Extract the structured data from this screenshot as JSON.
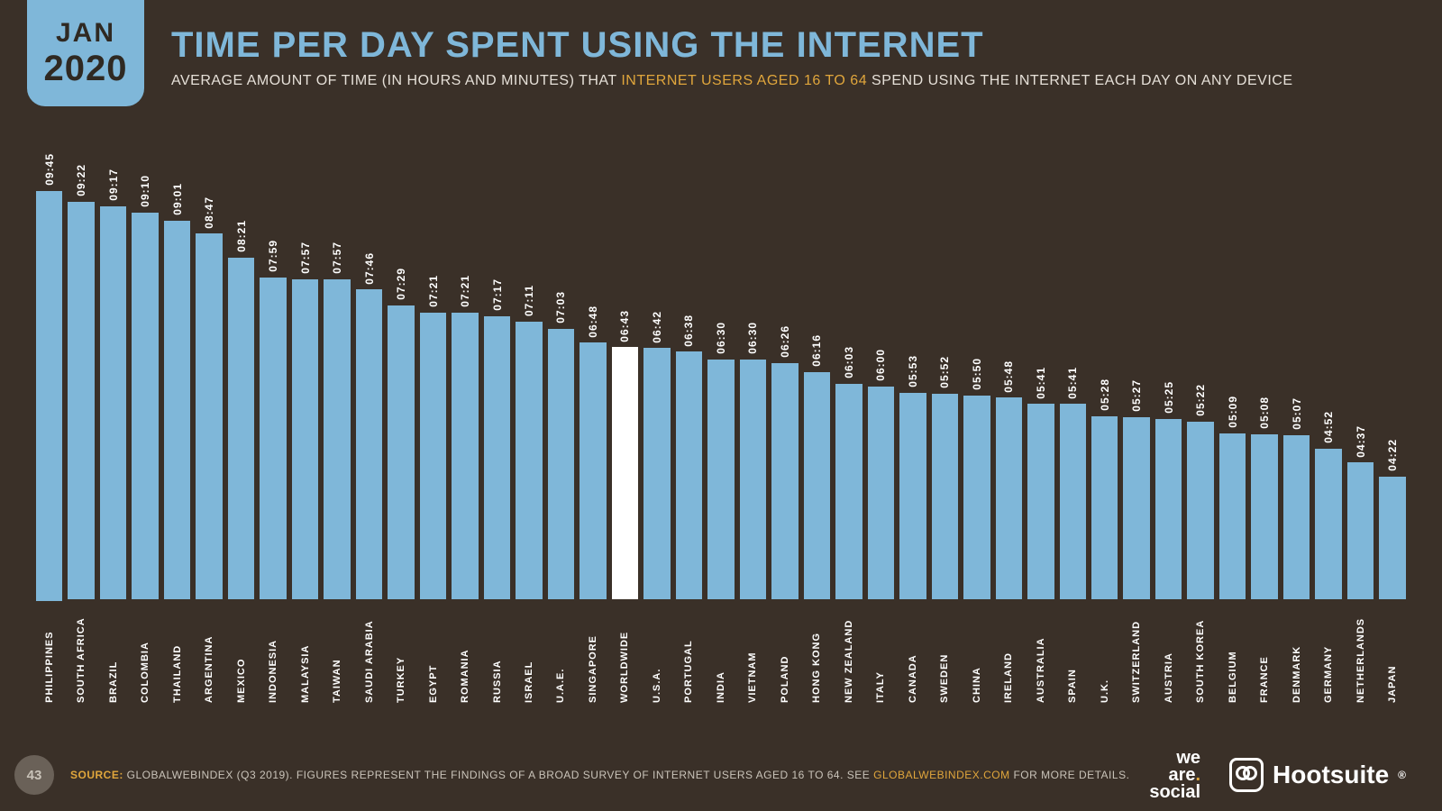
{
  "badge": {
    "month": "JAN",
    "year": "2020"
  },
  "header": {
    "title": "TIME PER DAY SPENT USING THE INTERNET",
    "subtitle_before": "AVERAGE AMOUNT OF TIME (IN HOURS AND MINUTES) THAT ",
    "subtitle_highlight": "INTERNET USERS AGED 16 TO 64",
    "subtitle_after": " SPEND USING THE INTERNET EACH DAY ON ANY DEVICE"
  },
  "chart": {
    "type": "bar",
    "bar_color": "#7fb7d9",
    "highlight_color": "#ffffff",
    "background_color": "#3a3028",
    "value_fontsize": 12,
    "category_fontsize": 11,
    "max_minutes": 600,
    "bars": [
      {
        "label": "PHILIPPINES",
        "value": "09:45",
        "minutes": 585,
        "highlight": false
      },
      {
        "label": "SOUTH AFRICA",
        "value": "09:22",
        "minutes": 562,
        "highlight": false
      },
      {
        "label": "BRAZIL",
        "value": "09:17",
        "minutes": 557,
        "highlight": false
      },
      {
        "label": "COLOMBIA",
        "value": "09:10",
        "minutes": 550,
        "highlight": false
      },
      {
        "label": "THAILAND",
        "value": "09:01",
        "minutes": 541,
        "highlight": false
      },
      {
        "label": "ARGENTINA",
        "value": "08:47",
        "minutes": 527,
        "highlight": false
      },
      {
        "label": "MEXICO",
        "value": "08:21",
        "minutes": 501,
        "highlight": false
      },
      {
        "label": "INDONESIA",
        "value": "07:59",
        "minutes": 479,
        "highlight": false
      },
      {
        "label": "MALAYSIA",
        "value": "07:57",
        "minutes": 477,
        "highlight": false
      },
      {
        "label": "TAIWAN",
        "value": "07:57",
        "minutes": 477,
        "highlight": false
      },
      {
        "label": "SAUDI ARABIA",
        "value": "07:46",
        "minutes": 466,
        "highlight": false
      },
      {
        "label": "TURKEY",
        "value": "07:29",
        "minutes": 449,
        "highlight": false
      },
      {
        "label": "EGYPT",
        "value": "07:21",
        "minutes": 441,
        "highlight": false
      },
      {
        "label": "ROMANIA",
        "value": "07:21",
        "minutes": 441,
        "highlight": false
      },
      {
        "label": "RUSSIA",
        "value": "07:17",
        "minutes": 437,
        "highlight": false
      },
      {
        "label": "ISRAEL",
        "value": "07:11",
        "minutes": 431,
        "highlight": false
      },
      {
        "label": "U.A.E.",
        "value": "07:03",
        "minutes": 423,
        "highlight": false
      },
      {
        "label": "SINGAPORE",
        "value": "06:48",
        "minutes": 408,
        "highlight": false
      },
      {
        "label": "WORLDWIDE",
        "value": "06:43",
        "minutes": 403,
        "highlight": true
      },
      {
        "label": "U.S.A.",
        "value": "06:42",
        "minutes": 402,
        "highlight": false
      },
      {
        "label": "PORTUGAL",
        "value": "06:38",
        "minutes": 398,
        "highlight": false
      },
      {
        "label": "INDIA",
        "value": "06:30",
        "minutes": 390,
        "highlight": false
      },
      {
        "label": "VIETNAM",
        "value": "06:30",
        "minutes": 390,
        "highlight": false
      },
      {
        "label": "POLAND",
        "value": "06:26",
        "minutes": 386,
        "highlight": false
      },
      {
        "label": "HONG KONG",
        "value": "06:16",
        "minutes": 376,
        "highlight": false
      },
      {
        "label": "NEW ZEALAND",
        "value": "06:03",
        "minutes": 363,
        "highlight": false
      },
      {
        "label": "ITALY",
        "value": "06:00",
        "minutes": 360,
        "highlight": false
      },
      {
        "label": "CANADA",
        "value": "05:53",
        "minutes": 353,
        "highlight": false
      },
      {
        "label": "SWEDEN",
        "value": "05:52",
        "minutes": 352,
        "highlight": false
      },
      {
        "label": "CHINA",
        "value": "05:50",
        "minutes": 350,
        "highlight": false
      },
      {
        "label": "IRELAND",
        "value": "05:48",
        "minutes": 348,
        "highlight": false
      },
      {
        "label": "AUSTRALIA",
        "value": "05:41",
        "minutes": 341,
        "highlight": false
      },
      {
        "label": "SPAIN",
        "value": "05:41",
        "minutes": 341,
        "highlight": false
      },
      {
        "label": "U.K.",
        "value": "05:28",
        "minutes": 328,
        "highlight": false
      },
      {
        "label": "SWITZERLAND",
        "value": "05:27",
        "minutes": 327,
        "highlight": false
      },
      {
        "label": "AUSTRIA",
        "value": "05:25",
        "minutes": 325,
        "highlight": false
      },
      {
        "label": "SOUTH KOREA",
        "value": "05:22",
        "minutes": 322,
        "highlight": false
      },
      {
        "label": "BELGIUM",
        "value": "05:09",
        "minutes": 309,
        "highlight": false
      },
      {
        "label": "FRANCE",
        "value": "05:08",
        "minutes": 308,
        "highlight": false
      },
      {
        "label": "DENMARK",
        "value": "05:07",
        "minutes": 307,
        "highlight": false
      },
      {
        "label": "GERMANY",
        "value": "04:52",
        "minutes": 292,
        "highlight": false
      },
      {
        "label": "NETHERLANDS",
        "value": "04:37",
        "minutes": 277,
        "highlight": false
      },
      {
        "label": "JAPAN",
        "value": "04:22",
        "minutes": 262,
        "highlight": false
      }
    ]
  },
  "footer": {
    "page": "43",
    "source_label": "SOURCE:",
    "source_text_before": " GLOBALWEBINDEX (Q3 2019). FIGURES REPRESENT THE FINDINGS OF A BROAD SURVEY OF INTERNET USERS AGED 16 TO 64. SEE ",
    "source_link": "GLOBALWEBINDEX.COM",
    "source_text_after": " FOR MORE DETAILS.",
    "logo1_line1": "we",
    "logo1_line2": "are",
    "logo1_line3": "social",
    "logo2": "Hootsuite"
  }
}
